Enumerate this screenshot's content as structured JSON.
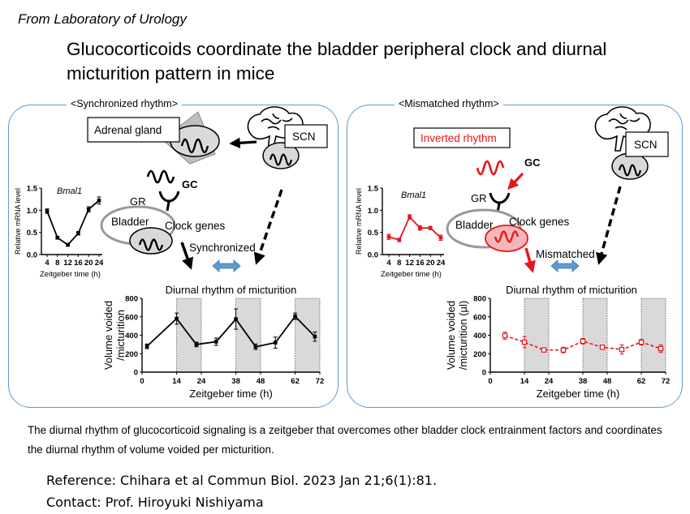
{
  "header": {
    "lab": "From Laboratory of Urology",
    "title": "Glucocorticoids coordinate the bladder peripheral clock and diurnal micturition pattern in mice"
  },
  "left_panel": {
    "label": "<Synchronized rhythm>",
    "adrenal": "Adrenal gland",
    "scn": "SCN",
    "gc": "GC",
    "gr": "GR",
    "bladder": "Bladder",
    "clock_genes": "Clock genes",
    "status": "Synchronized",
    "micturition_title": "Diurnal rhythm of micturition"
  },
  "right_panel": {
    "label": "<Mismatched rhythm>",
    "inverted": "Inverted rhythm",
    "scn": "SCN",
    "gc": "GC",
    "gr": "GR",
    "bladder": "Bladder",
    "clock_genes": "Clock genes",
    "status": "Mismatched",
    "micturition_title": "Diurnal rhythm of micturition"
  },
  "colors": {
    "panel_border": "#5b9bd5",
    "inverted": "#e8161c",
    "shade": "#d9d9d9",
    "arrow_blue": "#5b9bd5"
  },
  "chart_data": [
    {
      "id": "bmal1-sync",
      "type": "line",
      "title": "Bmal1",
      "ylabel": "Relative mRNA level",
      "xlabel": "Zeitgeber time (h)",
      "x": [
        4,
        8,
        12,
        16,
        20,
        24
      ],
      "y": [
        0.98,
        0.38,
        0.22,
        0.48,
        1.02,
        1.22
      ],
      "err": [
        0.05,
        0.03,
        0.03,
        0.04,
        0.06,
        0.08
      ],
      "xticks": [
        "4",
        "8",
        "12",
        "16",
        "20",
        "24"
      ],
      "yticks": [
        "0.0",
        "0.5",
        "1.0",
        "1.5"
      ],
      "ylim": [
        0,
        1.5
      ],
      "color": "#000000"
    },
    {
      "id": "bmal1-mismatch",
      "type": "line",
      "title": "Bmal1",
      "ylabel": "Relative mRNA level",
      "xlabel": "Zeitgeber time (h)",
      "x": [
        4,
        8,
        12,
        16,
        20,
        24
      ],
      "y": [
        0.4,
        0.33,
        0.85,
        0.6,
        0.6,
        0.38
      ],
      "err": [
        0.06,
        0.04,
        0.05,
        0.05,
        0.04,
        0.06
      ],
      "xticks": [
        "4",
        "8",
        "12",
        "16",
        "20",
        "24"
      ],
      "yticks": [
        "0.0",
        "0.5",
        "1.0",
        "1.5"
      ],
      "ylim": [
        0,
        1.5
      ],
      "color": "#e8161c"
    },
    {
      "id": "micturition-sync",
      "type": "line",
      "title": "Diurnal rhythm of micturition",
      "ylabel": "Volume voided /micturition",
      "xlabel": "Zeitgeber time (h)",
      "x": [
        2,
        14,
        22,
        30,
        38,
        46,
        54,
        62,
        70
      ],
      "y": [
        280,
        580,
        300,
        330,
        575,
        275,
        320,
        605,
        385
      ],
      "err": [
        25,
        60,
        25,
        40,
        110,
        30,
        60,
        35,
        50
      ],
      "xticks": [
        "0",
        "14",
        "24",
        "38",
        "48",
        "62",
        "72"
      ],
      "yticks": [
        "0",
        "200",
        "400",
        "600",
        "800"
      ],
      "xlim": [
        0,
        72
      ],
      "ylim": [
        0,
        800
      ],
      "dark_periods": [
        [
          14,
          24
        ],
        [
          38,
          48
        ],
        [
          62,
          72
        ]
      ],
      "color": "#000000"
    },
    {
      "id": "micturition-mismatch",
      "type": "line",
      "title": "Diurnal rhythm of micturition",
      "ylabel": "Volume voided /micturition (µl)",
      "xlabel": "Zeitgeber time (h)",
      "x": [
        6,
        14,
        22,
        30,
        38,
        46,
        54,
        62,
        70
      ],
      "y": [
        395,
        325,
        240,
        240,
        335,
        270,
        245,
        325,
        255
      ],
      "err": [
        40,
        60,
        15,
        30,
        30,
        20,
        50,
        30,
        40
      ],
      "xticks": [
        "0",
        "14",
        "24",
        "38",
        "48",
        "62",
        "72"
      ],
      "yticks": [
        "0",
        "200",
        "400",
        "600",
        "800"
      ],
      "xlim": [
        0,
        72
      ],
      "ylim": [
        0,
        800
      ],
      "dark_periods": [
        [
          14,
          24
        ],
        [
          38,
          48
        ],
        [
          62,
          72
        ]
      ],
      "color": "#e8161c"
    }
  ],
  "caption": "The diurnal rhythm of glucocorticoid signaling is a zeitgeber that overcomes other bladder clock entrainment factors and coordinates the diurnal rhythm of volume voided per micturition.",
  "footer": {
    "reference": "Reference: Chihara et al Commun Biol. 2023 Jan 21;6(1):81.",
    "contact": "Contact: Prof. Hiroyuki Nishiyama"
  }
}
